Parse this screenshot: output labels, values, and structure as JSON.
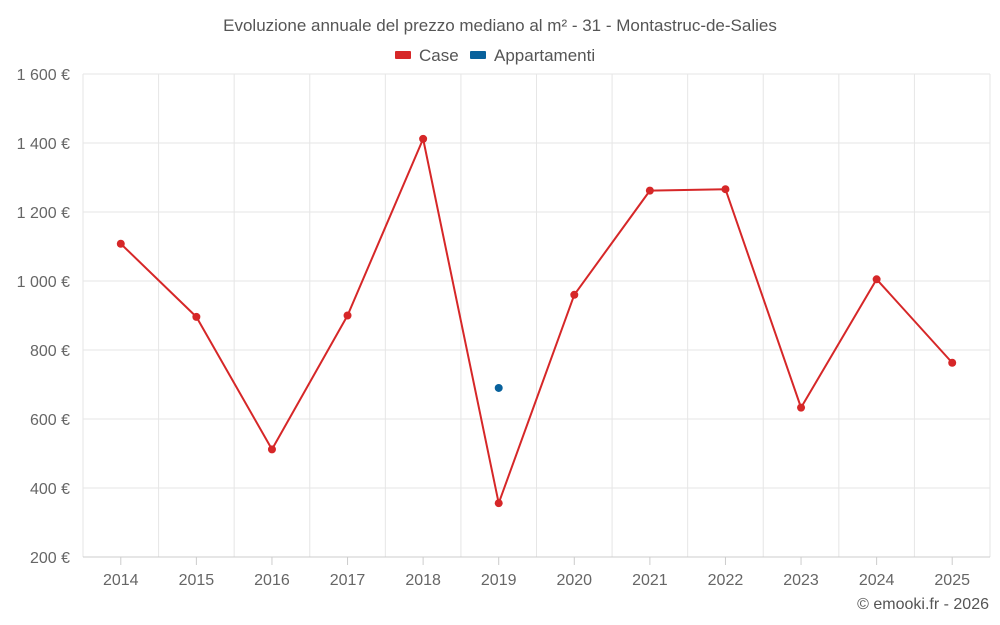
{
  "chart_data": {
    "type": "line",
    "title": "Evoluzione annuale del prezzo mediano al m² - 31 - Montastruc-de-Salies",
    "xlabel": "",
    "ylabel": "",
    "categories": [
      "2014",
      "2015",
      "2016",
      "2017",
      "2018",
      "2019",
      "2020",
      "2021",
      "2022",
      "2023",
      "2024",
      "2025"
    ],
    "ylim": [
      200,
      1600
    ],
    "yticks": [
      200,
      400,
      600,
      800,
      1000,
      1200,
      1400,
      1600
    ],
    "ytick_labels": [
      "200 €",
      "400 €",
      "600 €",
      "800 €",
      "1 000 €",
      "1 200 €",
      "1 400 €",
      "1 600 €"
    ],
    "grid": true,
    "legend_position": "top-center",
    "series": [
      {
        "name": "Case",
        "color": "#d62728",
        "values": [
          1108,
          896,
          512,
          900,
          1412,
          356,
          960,
          1262,
          1266,
          633,
          1005,
          763
        ]
      },
      {
        "name": "Appartamenti",
        "color": "#08619c",
        "values": [
          null,
          null,
          null,
          null,
          null,
          690,
          null,
          null,
          null,
          null,
          null,
          null
        ]
      }
    ]
  },
  "credit": "© emooki.fr - 2026"
}
